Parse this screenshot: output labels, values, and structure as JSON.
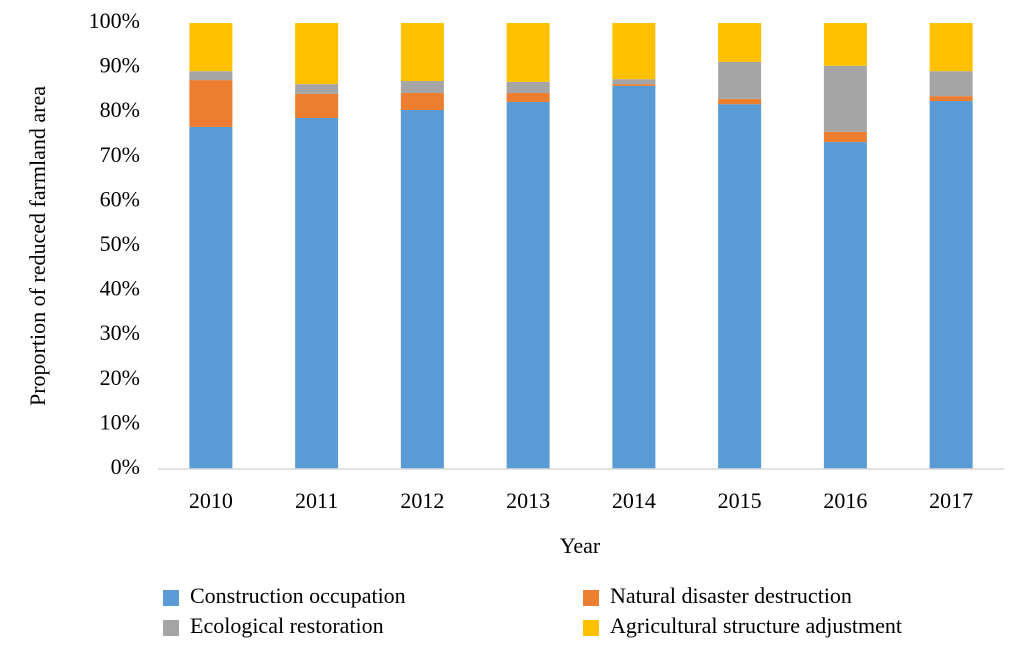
{
  "chart_data": {
    "type": "stacked_bar",
    "x_label": "Year",
    "y_label": "Proportion of reduced farmland area",
    "categories": [
      "2010",
      "2011",
      "2012",
      "2013",
      "2014",
      "2015",
      "2016",
      "2017"
    ],
    "series": [
      {
        "name": "Construction occupation",
        "color": "#5b9bd5",
        "values": [
          76.7,
          78.7,
          80.5,
          82.3,
          85.9,
          81.8,
          73.3,
          82.5
        ]
      },
      {
        "name": "Natural disaster destruction",
        "color": "#ed7d31",
        "values": [
          10.5,
          5.4,
          3.8,
          2.0,
          0.4,
          1.2,
          2.3,
          1.1
        ]
      },
      {
        "name": "Ecological restoration",
        "color": "#a5a5a5",
        "values": [
          2.0,
          2.2,
          2.7,
          2.5,
          1.1,
          8.3,
          14.8,
          5.6
        ]
      },
      {
        "name": "Agricultural structure adjustment",
        "color": "#ffc000",
        "values": [
          10.8,
          13.7,
          13.0,
          13.2,
          12.6,
          8.7,
          9.6,
          10.8
        ]
      }
    ],
    "ylim": [
      0,
      100
    ],
    "yticks": [
      {
        "value": 0,
        "label": "0%"
      },
      {
        "value": 10,
        "label": "10%"
      },
      {
        "value": 20,
        "label": "20%"
      },
      {
        "value": 30,
        "label": "30%"
      },
      {
        "value": 40,
        "label": "40%"
      },
      {
        "value": 50,
        "label": "50%"
      },
      {
        "value": 60,
        "label": "60%"
      },
      {
        "value": 70,
        "label": "70%"
      },
      {
        "value": 80,
        "label": "80%"
      },
      {
        "value": 90,
        "label": "90%"
      },
      {
        "value": 100,
        "label": "100%"
      }
    ],
    "grid": false,
    "legend": "bottom"
  }
}
